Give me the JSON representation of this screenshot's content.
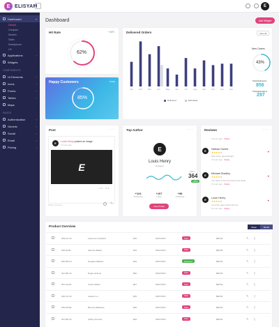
{
  "app": {
    "logo_letter": "E",
    "logo_text": "ELISYAM"
  },
  "header": {
    "page_title": "Dashboard",
    "add_widget": "Add Widget",
    "avatar": "E"
  },
  "sidebar": {
    "items": [
      {
        "label": "Dashboard",
        "active": true
      },
      {
        "label": "Applications"
      },
      {
        "label": "Widgets"
      }
    ],
    "dashboard_sub": [
      "Default",
      "Compact",
      "Modern",
      "Sales",
      "Smartphone",
      "UX"
    ],
    "section_components": "COMPONENTS",
    "components": [
      "UI Elements",
      "Icons",
      "Forms",
      "Tables",
      "Maps"
    ],
    "section_pages": "PAGES",
    "pages": [
      "Authentication",
      "Generic",
      "Social",
      "Email",
      "Pricing"
    ]
  },
  "hit_rate": {
    "title": "Hit Rate",
    "change": "+18%",
    "value": "62%",
    "fraction": 0.62,
    "color": "#e0447c"
  },
  "happy": {
    "title": "Happy Customers",
    "period": "Today",
    "value": "85%",
    "fraction": 0.85
  },
  "delivered": {
    "title": "Delivered Orders",
    "view_all": "View all",
    "new_orders_label": "New Orders",
    "new_orders_value": "43%",
    "new_orders_fraction": 0.43,
    "total_delivered_label": "Total Delivered",
    "total_delivered_value": "856",
    "total_estimated_label": "Total Estimated",
    "total_estimated_value": "297",
    "legend": [
      "Delivered",
      "Estimated"
    ],
    "colors": {
      "delivered": "#3d3f7c",
      "estimated": "#d7dae5",
      "accent": "#3bb9d1"
    }
  },
  "chart_data": {
    "type": "bar",
    "categories": [
      "Jan",
      "Feb",
      "Mar",
      "Apr",
      "May",
      "Jun",
      "Jul",
      "Aug",
      "Sep",
      "Oct",
      "Nov",
      "Dec"
    ],
    "series": [
      {
        "name": "Delivered",
        "values": [
          52,
          95,
          68,
          85,
          38,
          25,
          60,
          38,
          55,
          45,
          48,
          48
        ]
      },
      {
        "name": "Estimated",
        "values": [
          0,
          0,
          0,
          45,
          0,
          0,
          0,
          0,
          0,
          0,
          0,
          0
        ]
      }
    ],
    "ylim": [
      0,
      100
    ]
  },
  "post": {
    "title": "Post",
    "avatar": "E",
    "user": "Louis Henry",
    "action": " posted an image",
    "time": "2 hours ago",
    "image_letter": "E",
    "likes": "17",
    "comments": "4",
    "comment_placeholder": "Write comment..."
  },
  "author": {
    "title": "Top Author",
    "avatar": "E",
    "name": "Louis Henry",
    "role": "Designer",
    "sales_label": "Sales",
    "sales_value": "364",
    "sales_change": "+28%",
    "stats": [
      {
        "value": "+124",
        "label": "Followers"
      },
      {
        "value": "+107",
        "label": "Likes"
      },
      {
        "value": "+98",
        "label": "Following"
      }
    ],
    "view_profile": "View Profile"
  },
  "reviews": {
    "title": "Reviews",
    "top_time": "3 hours ago",
    "top_reply": "Reply",
    "items": [
      {
        "avatar": "E",
        "name": "Nathan Hunter",
        "stars": "★★★★★",
        "text": "Nice work, good design!",
        "time": "4 hours ago",
        "reply": "Reply"
      },
      {
        "avatar": "E",
        "name": "Michael Bradley",
        "stars": "★★★★★",
        "text": "You have to buy the theme this week",
        "time": "6 hours ago",
        "reply": "Reply"
      },
      {
        "avatar": "E",
        "name": "Louis Henry",
        "stars": "★★★★★",
        "text": "Love the super admin theme",
        "time": "8 hours ago",
        "reply": "Reply"
      }
    ]
  },
  "products": {
    "title": "Product Overview",
    "tabs": [
      "Week",
      "Month"
    ],
    "rows": [
      {
        "id": "003-12-US",
        "name": "Lawrence Crawford",
        "qty": "$25",
        "date": "03/07/2017",
        "status": "Paid",
        "status_color": "#e0447c",
        "price": "$98.00"
      },
      {
        "id": "189-32-BL",
        "name": "Samuel Watkin",
        "qty": "$78",
        "date": "03/07/2017",
        "status": "Paid",
        "status_color": "#e0447c",
        "price": "$98.00"
      },
      {
        "id": "030-98-CH",
        "name": "Douglas Watkins",
        "qty": "$15",
        "date": "03/07/2017",
        "status": "Delivered",
        "status_color": "#4caf50",
        "price": "$98.00"
      },
      {
        "id": "027-98-US",
        "name": "Roger Holmes",
        "qty": "$90",
        "date": "03/07/2017",
        "status": "Paid",
        "status_color": "#e0447c",
        "price": "$98.00"
      },
      {
        "id": "057-42-FR",
        "name": "Carlyn Waine",
        "qty": "$67",
        "date": "03/07/2017",
        "status": "Paid",
        "status_color": "#e0447c",
        "price": "$98.00"
      },
      {
        "id": "040-70-US",
        "name": "Lawson Lo",
        "qty": "$15",
        "date": "03/07/2017",
        "status": "Paid",
        "status_color": "#e0447c",
        "price": "$98.00"
      },
      {
        "id": "189-35-DE",
        "name": "Beverly Matthews",
        "qty": "$30",
        "date": "03/07/2017",
        "status": "Paid",
        "status_color": "#e0447c",
        "price": "$98.00"
      },
      {
        "id": "027-98-US",
        "name": "Jeffrey Armand",
        "qty": "$45",
        "date": "03/07/2017",
        "status": "Paid",
        "status_color": "#e0447c",
        "price": "$98.00"
      }
    ]
  }
}
